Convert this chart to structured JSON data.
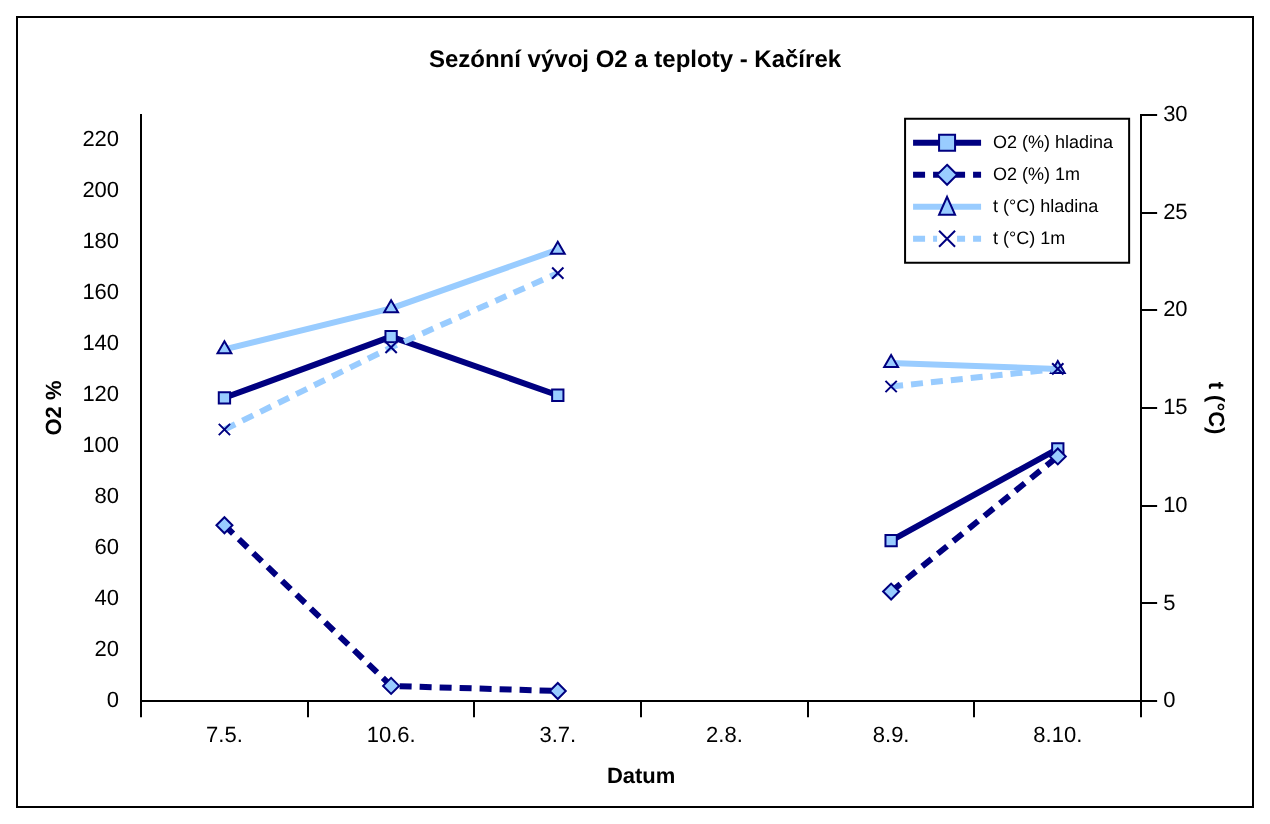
{
  "chart_data": {
    "type": "line",
    "title": "Sezónní vývoj O2 a teploty - Kačírek",
    "xlabel": "Datum",
    "ylabel": "O2 %",
    "y2label": "t (°C)",
    "categories": [
      "7.5.",
      "10.6.",
      "3.7.",
      "2.8.",
      "8.9.",
      "8.10."
    ],
    "series": [
      {
        "name": "O2 (%) hladina",
        "color": "#000080",
        "values": [
          119,
          143,
          120,
          null,
          63,
          99
        ],
        "marker": "square",
        "line_style": "solid"
      },
      {
        "name": "O2 (%) 1m",
        "color": "#000080",
        "values": [
          69,
          6,
          4,
          null,
          43,
          96
        ],
        "marker": "diamond",
        "line_style": "dashed"
      },
      {
        "name": "t (°C) hladina",
        "color": "#99ccff",
        "values": [
          18,
          20.1,
          23.1,
          null,
          17.3,
          17
        ],
        "marker": "triangle",
        "line_style": "solid",
        "axis": "y2"
      },
      {
        "name": "t (°C) 1m",
        "color": "#99ccff",
        "values": [
          13.9,
          18.1,
          21.9,
          null,
          16.1,
          17
        ],
        "marker": "cross",
        "line_style": "dashed",
        "axis": "y2"
      }
    ],
    "ylim": [
      0,
      230
    ],
    "yticks": [
      0,
      20,
      40,
      60,
      80,
      100,
      120,
      140,
      160,
      180,
      200,
      220
    ],
    "y2lim": [
      0,
      30
    ],
    "y2ticks": [
      0,
      5,
      10,
      15,
      20,
      25,
      30
    ],
    "grid": false,
    "legend": "top right"
  }
}
